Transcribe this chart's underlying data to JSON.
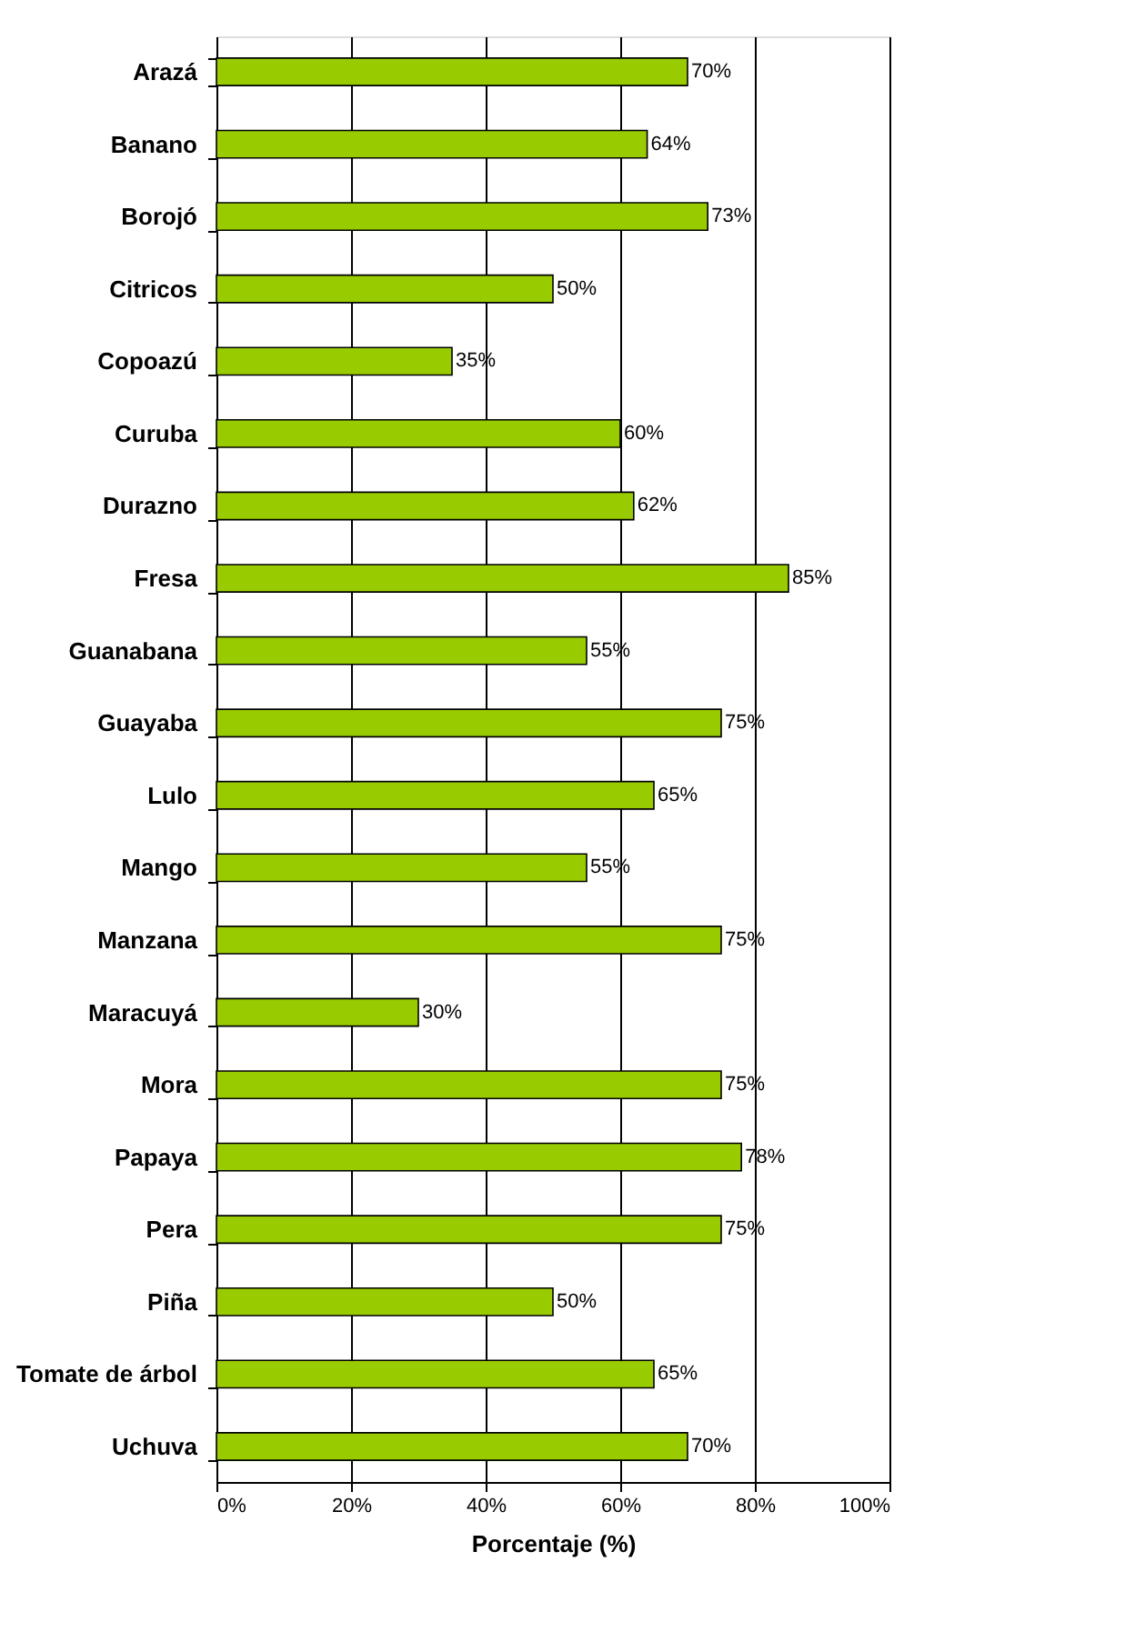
{
  "chart_data": {
    "type": "bar",
    "orientation": "horizontal",
    "xlabel": "Porcentaje (%)",
    "categories": [
      "Arazá",
      "Banano",
      "Borojó",
      "Citricos",
      "Copoazú",
      "Curuba",
      "Durazno",
      "Fresa",
      "Guanabana",
      "Guayaba",
      "Lulo",
      "Mango",
      "Manzana",
      "Maracuyá",
      "Mora",
      "Papaya",
      "Pera",
      "Piña",
      "Tomate de árbol",
      "Uchuva"
    ],
    "values": [
      70,
      64,
      73,
      50,
      35,
      60,
      62,
      85,
      55,
      75,
      65,
      55,
      75,
      30,
      75,
      78,
      75,
      50,
      65,
      70
    ],
    "value_labels": [
      "70%",
      "64%",
      "73%",
      "50%",
      "35%",
      "60%",
      "62%",
      "85%",
      "55%",
      "75%",
      "65%",
      "55%",
      "75%",
      "30%",
      "75%",
      "78%",
      "75%",
      "50%",
      "65%",
      "70%"
    ],
    "color": "#99cc00",
    "xlim": [
      0,
      100
    ],
    "xticks": [
      {
        "value": 0,
        "label": "0%"
      },
      {
        "value": 20,
        "label": "20%"
      },
      {
        "value": 40,
        "label": "40%"
      },
      {
        "value": 60,
        "label": "60%"
      },
      {
        "value": 80,
        "label": "80%"
      },
      {
        "value": 100,
        "label": "100%"
      }
    ],
    "grid": "x"
  }
}
